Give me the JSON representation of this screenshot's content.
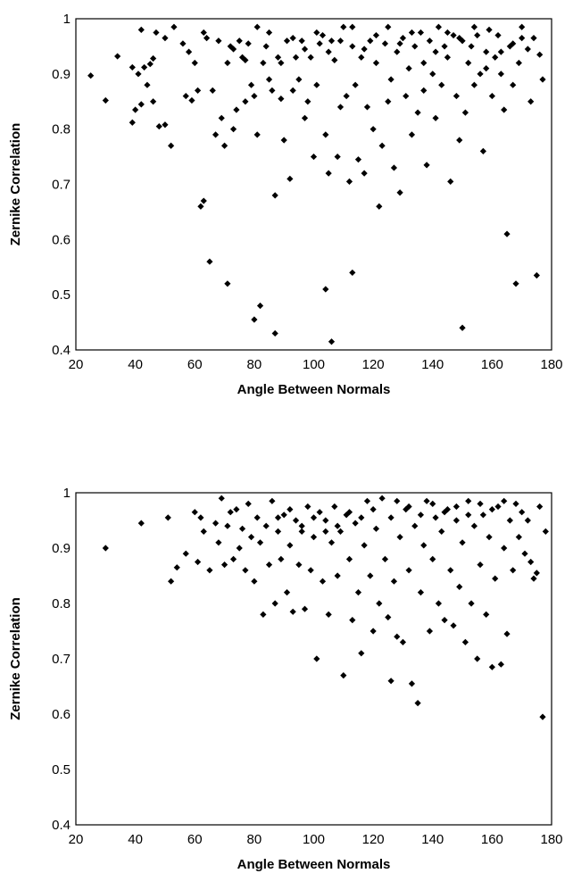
{
  "chart_data": [
    {
      "type": "scatter",
      "xlabel": "Angle Between Normals",
      "ylabel": "Zernike Correlation",
      "xlim": [
        20,
        180
      ],
      "ylim": [
        0.4,
        1
      ],
      "xticks": [
        "20",
        "40",
        "60",
        "80",
        "100",
        "120",
        "140",
        "160",
        "180"
      ],
      "yticks": [
        "0.4",
        "0.5",
        "0.6",
        "0.7",
        "0.8",
        "0.9",
        "1"
      ],
      "grid": false,
      "marker_color": "#000000",
      "points": [
        [
          25,
          0.897
        ],
        [
          30,
          0.852
        ],
        [
          34,
          0.932
        ],
        [
          39,
          0.912
        ],
        [
          39,
          0.812
        ],
        [
          40,
          0.835
        ],
        [
          41,
          0.9
        ],
        [
          42,
          0.98
        ],
        [
          42,
          0.845
        ],
        [
          43,
          0.912
        ],
        [
          44,
          0.88
        ],
        [
          45,
          0.918
        ],
        [
          46,
          0.928
        ],
        [
          46,
          0.85
        ],
        [
          47,
          0.975
        ],
        [
          48,
          0.805
        ],
        [
          50,
          0.808
        ],
        [
          50,
          0.965
        ],
        [
          52,
          0.77
        ],
        [
          53,
          0.985
        ],
        [
          56,
          0.955
        ],
        [
          57,
          0.86
        ],
        [
          58,
          0.94
        ],
        [
          59,
          0.852
        ],
        [
          60,
          0.92
        ],
        [
          61,
          0.87
        ],
        [
          62,
          0.66
        ],
        [
          63,
          0.67
        ],
        [
          63,
          0.975
        ],
        [
          64,
          0.965
        ],
        [
          65,
          0.56
        ],
        [
          66,
          0.87
        ],
        [
          67,
          0.79
        ],
        [
          68,
          0.96
        ],
        [
          69,
          0.82
        ],
        [
          70,
          0.77
        ],
        [
          71,
          0.92
        ],
        [
          71,
          0.52
        ],
        [
          72,
          0.95
        ],
        [
          73,
          0.8
        ],
        [
          74,
          0.835
        ],
        [
          75,
          0.96
        ],
        [
          76,
          0.93
        ],
        [
          77,
          0.85
        ],
        [
          78,
          0.955
        ],
        [
          79,
          0.88
        ],
        [
          80,
          0.86
        ],
        [
          80,
          0.455
        ],
        [
          81,
          0.79
        ],
        [
          82,
          0.48
        ],
        [
          83,
          0.92
        ],
        [
          84,
          0.95
        ],
        [
          85,
          0.89
        ],
        [
          86,
          0.87
        ],
        [
          87,
          0.43
        ],
        [
          87,
          0.68
        ],
        [
          88,
          0.93
        ],
        [
          89,
          0.855
        ],
        [
          90,
          0.78
        ],
        [
          91,
          0.96
        ],
        [
          92,
          0.71
        ],
        [
          93,
          0.87
        ],
        [
          94,
          0.93
        ],
        [
          95,
          0.89
        ],
        [
          96,
          0.96
        ],
        [
          97,
          0.82
        ],
        [
          98,
          0.85
        ],
        [
          99,
          0.93
        ],
        [
          100,
          0.75
        ],
        [
          101,
          0.88
        ],
        [
          102,
          0.955
        ],
        [
          103,
          0.97
        ],
        [
          104,
          0.79
        ],
        [
          104,
          0.51
        ],
        [
          105,
          0.72
        ],
        [
          106,
          0.96
        ],
        [
          106,
          0.415
        ],
        [
          107,
          0.925
        ],
        [
          108,
          0.75
        ],
        [
          109,
          0.84
        ],
        [
          110,
          0.985
        ],
        [
          111,
          0.86
        ],
        [
          112,
          0.705
        ],
        [
          113,
          0.95
        ],
        [
          113,
          0.54
        ],
        [
          114,
          0.88
        ],
        [
          115,
          0.745
        ],
        [
          116,
          0.93
        ],
        [
          117,
          0.72
        ],
        [
          118,
          0.84
        ],
        [
          119,
          0.96
        ],
        [
          120,
          0.8
        ],
        [
          121,
          0.92
        ],
        [
          122,
          0.66
        ],
        [
          123,
          0.77
        ],
        [
          124,
          0.955
        ],
        [
          125,
          0.85
        ],
        [
          126,
          0.89
        ],
        [
          127,
          0.73
        ],
        [
          128,
          0.94
        ],
        [
          129,
          0.685
        ],
        [
          130,
          0.965
        ],
        [
          131,
          0.86
        ],
        [
          132,
          0.91
        ],
        [
          133,
          0.79
        ],
        [
          134,
          0.95
        ],
        [
          135,
          0.83
        ],
        [
          136,
          0.975
        ],
        [
          137,
          0.87
        ],
        [
          138,
          0.735
        ],
        [
          139,
          0.96
        ],
        [
          140,
          0.9
        ],
        [
          141,
          0.82
        ],
        [
          142,
          0.985
        ],
        [
          143,
          0.88
        ],
        [
          144,
          0.95
        ],
        [
          145,
          0.93
        ],
        [
          146,
          0.705
        ],
        [
          147,
          0.97
        ],
        [
          148,
          0.86
        ],
        [
          149,
          0.78
        ],
        [
          150,
          0.96
        ],
        [
          150,
          0.44
        ],
        [
          151,
          0.83
        ],
        [
          152,
          0.92
        ],
        [
          153,
          0.95
        ],
        [
          154,
          0.88
        ],
        [
          155,
          0.97
        ],
        [
          156,
          0.9
        ],
        [
          157,
          0.76
        ],
        [
          158,
          0.94
        ],
        [
          159,
          0.98
        ],
        [
          160,
          0.86
        ],
        [
          161,
          0.93
        ],
        [
          162,
          0.97
        ],
        [
          163,
          0.9
        ],
        [
          164,
          0.835
        ],
        [
          165,
          0.61
        ],
        [
          166,
          0.95
        ],
        [
          167,
          0.88
        ],
        [
          168,
          0.52
        ],
        [
          169,
          0.92
        ],
        [
          170,
          0.965
        ],
        [
          172,
          0.945
        ],
        [
          173,
          0.85
        ],
        [
          174,
          0.965
        ],
        [
          175,
          0.535
        ],
        [
          176,
          0.935
        ],
        [
          177,
          0.89
        ],
        [
          170,
          0.985
        ],
        [
          167,
          0.955
        ],
        [
          163,
          0.94
        ],
        [
          158,
          0.91
        ],
        [
          154,
          0.985
        ],
        [
          149,
          0.965
        ],
        [
          145,
          0.975
        ],
        [
          141,
          0.94
        ],
        [
          137,
          0.92
        ],
        [
          133,
          0.975
        ],
        [
          129,
          0.955
        ],
        [
          125,
          0.985
        ],
        [
          121,
          0.97
        ],
        [
          117,
          0.945
        ],
        [
          113,
          0.985
        ],
        [
          109,
          0.96
        ],
        [
          105,
          0.94
        ],
        [
          101,
          0.975
        ],
        [
          97,
          0.945
        ],
        [
          93,
          0.965
        ],
        [
          89,
          0.92
        ],
        [
          85,
          0.975
        ],
        [
          81,
          0.985
        ],
        [
          77,
          0.925
        ],
        [
          73,
          0.945
        ]
      ]
    },
    {
      "type": "scatter",
      "xlabel": "Angle Between Normals",
      "ylabel": "Zernike Correlation",
      "xlim": [
        20,
        180
      ],
      "ylim": [
        0.4,
        1
      ],
      "xticks": [
        "20",
        "40",
        "60",
        "80",
        "100",
        "120",
        "140",
        "160",
        "180"
      ],
      "yticks": [
        "0.4",
        "0.5",
        "0.6",
        "0.7",
        "0.8",
        "0.9",
        "1"
      ],
      "grid": false,
      "marker_color": "#000000",
      "points": [
        [
          30,
          0.9
        ],
        [
          42,
          0.945
        ],
        [
          51,
          0.955
        ],
        [
          52,
          0.84
        ],
        [
          54,
          0.865
        ],
        [
          57,
          0.89
        ],
        [
          60,
          0.965
        ],
        [
          61,
          0.875
        ],
        [
          62,
          0.955
        ],
        [
          63,
          0.93
        ],
        [
          65,
          0.86
        ],
        [
          67,
          0.945
        ],
        [
          68,
          0.91
        ],
        [
          69,
          0.99
        ],
        [
          70,
          0.87
        ],
        [
          71,
          0.94
        ],
        [
          72,
          0.965
        ],
        [
          73,
          0.88
        ],
        [
          74,
          0.97
        ],
        [
          75,
          0.9
        ],
        [
          76,
          0.935
        ],
        [
          77,
          0.86
        ],
        [
          78,
          0.98
        ],
        [
          79,
          0.92
        ],
        [
          80,
          0.84
        ],
        [
          81,
          0.955
        ],
        [
          82,
          0.91
        ],
        [
          83,
          0.78
        ],
        [
          84,
          0.94
        ],
        [
          85,
          0.87
        ],
        [
          86,
          0.985
        ],
        [
          87,
          0.8
        ],
        [
          88,
          0.93
        ],
        [
          89,
          0.88
        ],
        [
          90,
          0.96
        ],
        [
          91,
          0.82
        ],
        [
          92,
          0.905
        ],
        [
          93,
          0.785
        ],
        [
          94,
          0.95
        ],
        [
          95,
          0.87
        ],
        [
          96,
          0.93
        ],
        [
          97,
          0.79
        ],
        [
          98,
          0.975
        ],
        [
          99,
          0.86
        ],
        [
          100,
          0.92
        ],
        [
          101,
          0.7
        ],
        [
          102,
          0.965
        ],
        [
          103,
          0.84
        ],
        [
          104,
          0.95
        ],
        [
          105,
          0.78
        ],
        [
          106,
          0.91
        ],
        [
          107,
          0.975
        ],
        [
          108,
          0.85
        ],
        [
          109,
          0.93
        ],
        [
          110,
          0.67
        ],
        [
          111,
          0.96
        ],
        [
          112,
          0.88
        ],
        [
          113,
          0.77
        ],
        [
          114,
          0.945
        ],
        [
          115,
          0.82
        ],
        [
          116,
          0.71
        ],
        [
          117,
          0.905
        ],
        [
          118,
          0.985
        ],
        [
          119,
          0.85
        ],
        [
          120,
          0.75
        ],
        [
          121,
          0.935
        ],
        [
          122,
          0.8
        ],
        [
          123,
          0.99
        ],
        [
          124,
          0.88
        ],
        [
          125,
          0.775
        ],
        [
          126,
          0.66
        ],
        [
          126,
          0.955
        ],
        [
          127,
          0.84
        ],
        [
          128,
          0.74
        ],
        [
          129,
          0.92
        ],
        [
          130,
          0.73
        ],
        [
          131,
          0.97
        ],
        [
          132,
          0.86
        ],
        [
          133,
          0.655
        ],
        [
          134,
          0.94
        ],
        [
          135,
          0.62
        ],
        [
          136,
          0.82
        ],
        [
          137,
          0.905
        ],
        [
          138,
          0.985
        ],
        [
          139,
          0.75
        ],
        [
          140,
          0.88
        ],
        [
          141,
          0.955
        ],
        [
          142,
          0.8
        ],
        [
          143,
          0.93
        ],
        [
          144,
          0.77
        ],
        [
          145,
          0.97
        ],
        [
          146,
          0.86
        ],
        [
          147,
          0.76
        ],
        [
          148,
          0.95
        ],
        [
          149,
          0.83
        ],
        [
          150,
          0.91
        ],
        [
          151,
          0.73
        ],
        [
          152,
          0.985
        ],
        [
          153,
          0.8
        ],
        [
          154,
          0.94
        ],
        [
          155,
          0.7
        ],
        [
          156,
          0.87
        ],
        [
          157,
          0.96
        ],
        [
          158,
          0.78
        ],
        [
          159,
          0.92
        ],
        [
          160,
          0.685
        ],
        [
          161,
          0.845
        ],
        [
          162,
          0.975
        ],
        [
          163,
          0.69
        ],
        [
          164,
          0.9
        ],
        [
          165,
          0.745
        ],
        [
          166,
          0.95
        ],
        [
          167,
          0.86
        ],
        [
          168,
          0.98
        ],
        [
          169,
          0.92
        ],
        [
          170,
          0.965
        ],
        [
          171,
          0.89
        ],
        [
          172,
          0.95
        ],
        [
          173,
          0.875
        ],
        [
          174,
          0.845
        ],
        [
          175,
          0.855
        ],
        [
          176,
          0.975
        ],
        [
          177,
          0.595
        ],
        [
          178,
          0.93
        ],
        [
          128,
          0.985
        ],
        [
          132,
          0.975
        ],
        [
          136,
          0.96
        ],
        [
          140,
          0.98
        ],
        [
          144,
          0.965
        ],
        [
          148,
          0.975
        ],
        [
          152,
          0.96
        ],
        [
          156,
          0.98
        ],
        [
          160,
          0.97
        ],
        [
          164,
          0.985
        ],
        [
          120,
          0.97
        ],
        [
          116,
          0.955
        ],
        [
          112,
          0.965
        ],
        [
          108,
          0.94
        ],
        [
          104,
          0.93
        ],
        [
          100,
          0.955
        ],
        [
          96,
          0.94
        ],
        [
          92,
          0.97
        ],
        [
          88,
          0.955
        ]
      ]
    }
  ]
}
